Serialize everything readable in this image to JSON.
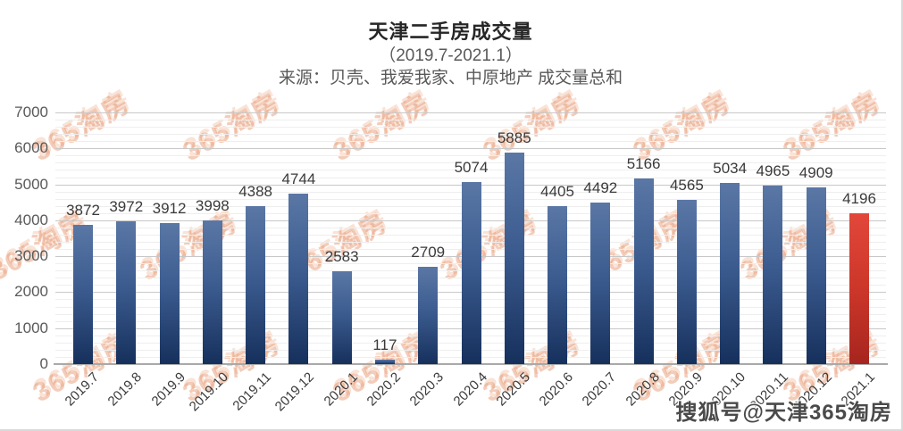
{
  "header": {
    "title": "天津二手房成交量",
    "subtitle": "（2019.7-2021.1）",
    "source": "来源：贝壳、我爱我家、中原地产 成交量总和"
  },
  "chart_data": {
    "type": "bar",
    "title": "天津二手房成交量",
    "subtitle": "（2019.7-2021.1）",
    "source": "来源：贝壳、我爱我家、中原地产 成交量总和",
    "categories": [
      "2019.7",
      "2019.8",
      "2019.9",
      "2019.10",
      "2019.11",
      "2019.12",
      "2020.1",
      "2020.2",
      "2020.3",
      "2020.4",
      "2020.5",
      "2020.6",
      "2020.7",
      "2020.8",
      "2020.9",
      "2020.10",
      "2020.11",
      "2020.12",
      "2021.1"
    ],
    "values": [
      3872,
      3972,
      3912,
      3998,
      4388,
      4744,
      2583,
      117,
      2709,
      5074,
      5885,
      4405,
      4492,
      5166,
      4565,
      5034,
      4965,
      4909,
      4196
    ],
    "ylabel": "",
    "xlabel": "",
    "ylim": [
      0,
      7000
    ],
    "ytick_step": 1000,
    "minor_gridline_step": 200,
    "grid": true,
    "legend": "none",
    "highlight_index": 18,
    "bar_color": "#3c5c90",
    "bar_gradient": [
      "#5a77a5",
      "#16305c"
    ],
    "highlight_color": "#d93a2e",
    "highlight_gradient": [
      "#e2473a",
      "#a6251f"
    ]
  },
  "watermark": {
    "text": "365淘房",
    "color": "#e07a4a"
  },
  "stamp": {
    "text": "搜狐号@天津365淘房"
  }
}
